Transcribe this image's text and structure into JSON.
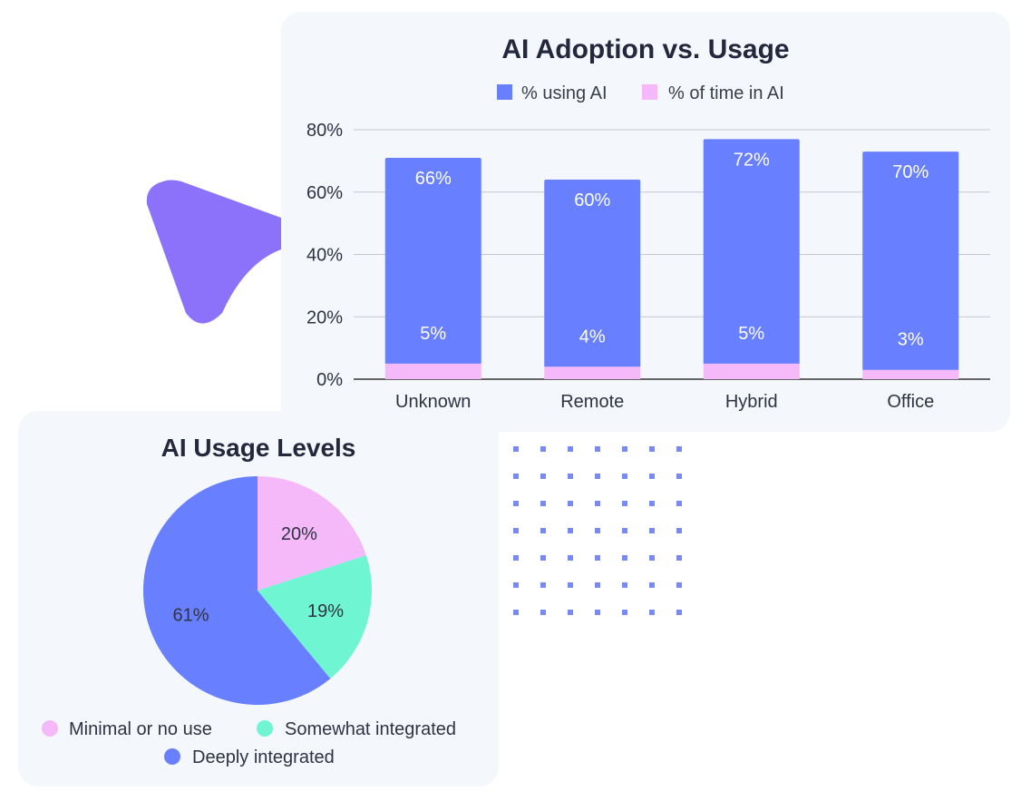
{
  "colors": {
    "using_ai": "#6880ff",
    "time_in_ai": "#f5b9fa",
    "minimal": "#f5b9fa",
    "somewhat": "#6ff5d2",
    "deeply": "#6880ff",
    "arrow": "#8c72fb",
    "dots": "#7889f2"
  },
  "bar_chart": {
    "title": "AI Adoption vs. Usage",
    "legend": [
      "% using AI",
      "% of time in AI"
    ]
  },
  "pie_chart": {
    "title": "AI Usage Levels",
    "legend": [
      "Minimal or no use",
      "Somewhat integrated",
      "Deeply integrated"
    ]
  },
  "chart_data": [
    {
      "type": "bar",
      "stacked": true,
      "title": "AI Adoption vs. Usage",
      "categories": [
        "Unknown",
        "Remote",
        "Hybrid",
        "Office"
      ],
      "series": [
        {
          "name": "% using AI",
          "values": [
            66,
            60,
            72,
            70
          ],
          "labels": [
            "66%",
            "60%",
            "72%",
            "70%"
          ]
        },
        {
          "name": "% of time in AI",
          "values": [
            5,
            4,
            5,
            3
          ],
          "labels": [
            "5%",
            "4%",
            "5%",
            "3%"
          ]
        }
      ],
      "ylim": [
        0,
        80
      ],
      "yticks": [
        0,
        20,
        40,
        60,
        80
      ],
      "ytick_labels": [
        "0%",
        "20%",
        "40%",
        "60%",
        "80%"
      ],
      "grid": true,
      "legend_position": "top"
    },
    {
      "type": "pie",
      "title": "AI Usage Levels",
      "labels": [
        "Minimal or no use",
        "Somewhat integrated",
        "Deeply integrated"
      ],
      "values": [
        20,
        19,
        61
      ],
      "value_labels": [
        "20%",
        "19%",
        "61%"
      ],
      "legend_position": "bottom"
    }
  ]
}
